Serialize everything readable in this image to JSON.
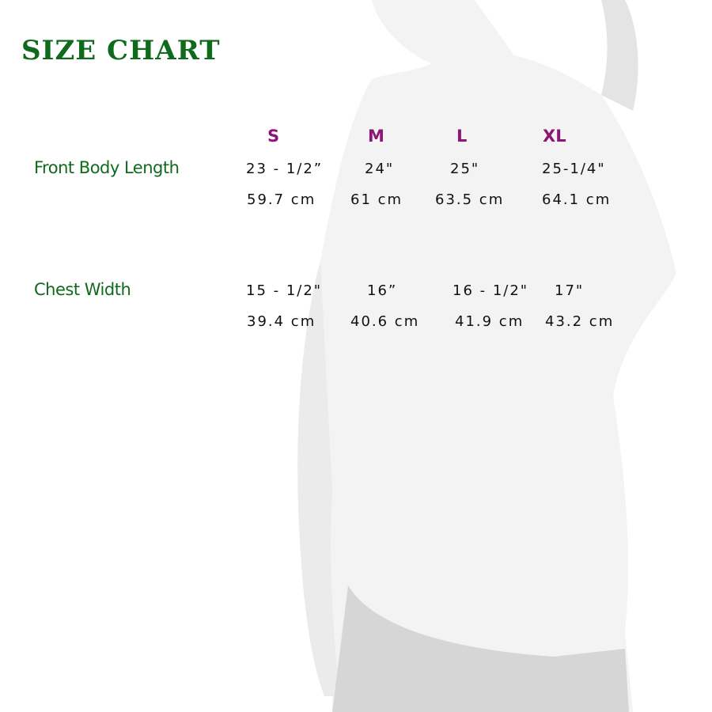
{
  "title": "SIZE CHART",
  "sizes": [
    "S",
    "M",
    "L",
    "XL"
  ],
  "rows": [
    {
      "label": "Front Body Length",
      "inches": [
        "23 - 1/2”",
        "24\"",
        "25\"",
        "25-1/4\""
      ],
      "cm": [
        "59.7 cm",
        "61 cm",
        "63.5 cm",
        "64.1 cm"
      ]
    },
    {
      "label": "Chest Width",
      "inches": [
        "15 - 1/2\"",
        "16”",
        "16 - 1/2\"",
        "17\""
      ],
      "cm": [
        "39.4 cm",
        "40.6 cm",
        "41.9 cm",
        "43.2 cm"
      ]
    }
  ],
  "colors": {
    "title": "#0f6a1c",
    "size_header": "#8c1577",
    "values": "#111111"
  }
}
